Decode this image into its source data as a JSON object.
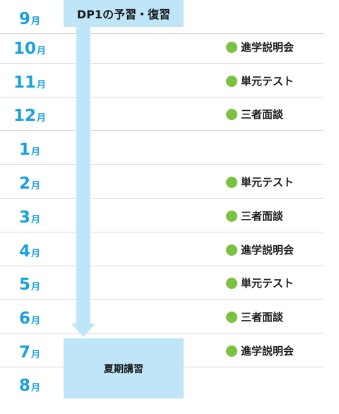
{
  "colors": {
    "accent": "#1aa1dd",
    "arrow": "#bfe6f8",
    "dot": "#7cc241"
  },
  "top_box": {
    "label": "DP1の予習・復習"
  },
  "bottom_box": {
    "label": "夏期講習"
  },
  "rows": [
    {
      "month": "9",
      "unit": "月",
      "event": ""
    },
    {
      "month": "10",
      "unit": "月",
      "event": "進学説明会"
    },
    {
      "month": "11",
      "unit": "月",
      "event": "単元テスト"
    },
    {
      "month": "12",
      "unit": "月",
      "event": "三者面談"
    },
    {
      "month": "1",
      "unit": "月",
      "event": ""
    },
    {
      "month": "2",
      "unit": "月",
      "event": "単元テスト"
    },
    {
      "month": "3",
      "unit": "月",
      "event": "三者面談"
    },
    {
      "month": "4",
      "unit": "月",
      "event": "進学説明会"
    },
    {
      "month": "5",
      "unit": "月",
      "event": "単元テスト"
    },
    {
      "month": "6",
      "unit": "月",
      "event": "三者面談"
    },
    {
      "month": "7",
      "unit": "月",
      "event": "進学説明会"
    },
    {
      "month": "8",
      "unit": "月",
      "event": ""
    }
  ]
}
